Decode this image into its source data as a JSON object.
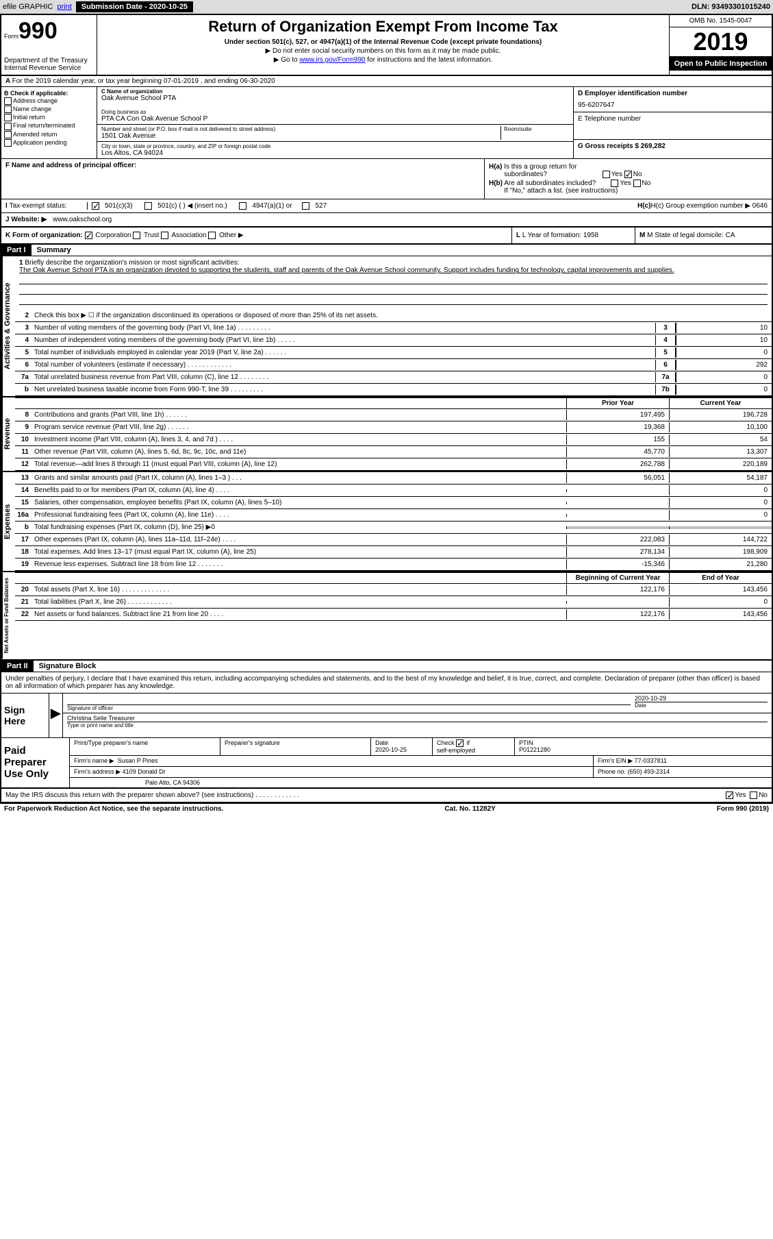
{
  "top_bar": {
    "efile": "efile GRAPHIC",
    "print": "print",
    "submission_label": "Submission Date - 2020-10-25",
    "dln": "DLN: 93493301015240"
  },
  "header": {
    "form_prefix": "Form",
    "form_number": "990",
    "title": "Return of Organization Exempt From Income Tax",
    "subtitle": "Under section 501(c), 527, or 4947(a)(1) of the Internal Revenue Code (except private foundations)",
    "note1": "▶ Do not enter social security numbers on this form as it may be made public.",
    "note2_prefix": "▶ Go to ",
    "note2_link": "www.irs.gov/Form990",
    "note2_suffix": " for instructions and the latest information.",
    "dept": "Department of the Treasury\nInternal Revenue Service",
    "omb": "OMB No. 1545-0047",
    "year": "2019",
    "open_pub": "Open to Public Inspection"
  },
  "row_a": {
    "text": "For the 2019 calendar year, or tax year beginning 07-01-2019   , and ending 06-30-2020"
  },
  "section_b": {
    "label": "B Check if applicable:",
    "items": [
      "Address change",
      "Name change",
      "Initial return",
      "Final return/terminated",
      "Amended return",
      "Application pending"
    ]
  },
  "section_c": {
    "name_label": "C Name of organization",
    "name": "Oak Avenue School PTA",
    "dba_label": "Doing business as",
    "dba": "PTA CA Con Oak Avenue School P",
    "addr_label": "Number and street (or P.O. box if mail is not delivered to street address)",
    "room_label": "Room/suite",
    "addr": "1501 Oak Avenue",
    "city_label": "City or town, state or province, country, and ZIP or foreign postal code",
    "city": "Los Altos, CA  94024"
  },
  "section_de": {
    "d_label": "D Employer identification number",
    "d_value": "95-6207647",
    "e_label": "E Telephone number",
    "g_label": "G Gross receipts $ 269,282"
  },
  "section_f": {
    "label": "F  Name and address of principal officer:"
  },
  "section_h": {
    "ha": "H(a)  Is this a group return for subordinates?",
    "hb": "H(b)  Are all subordinates included?",
    "hb_note": "If \"No,\" attach a list. (see instructions)",
    "hc": "H(c)  Group exemption number ▶   0646",
    "yes": "Yes",
    "no": "No"
  },
  "tax_status": {
    "label": "Tax-exempt status:",
    "opt1": "501(c)(3)",
    "opt2": "501(c) (   ) ◀ (insert no.)",
    "opt3": "4947(a)(1) or",
    "opt4": "527"
  },
  "website": {
    "label": "J  Website: ▶",
    "value": "www.oakschool.org"
  },
  "form_org": {
    "k_label": "K Form of organization:",
    "opts": [
      "Corporation",
      "Trust",
      "Association",
      "Other ▶"
    ],
    "l_label": "L Year of formation: 1958",
    "m_label": "M State of legal domicile: CA"
  },
  "part1": {
    "header": "Part I",
    "title": "Summary"
  },
  "mission": {
    "num": "1",
    "label": "Briefly describe the organization's mission or most significant activities:",
    "text": "The Oak Avenue School PTA is an organization devoted to supporting the students, staff and parents of the Oak Avenue School community. Support includes funding for technology, capital improvements and supplies."
  },
  "governance_lines": [
    {
      "num": "2",
      "desc": "Check this box ▶ ☐  if the organization discontinued its operations or disposed of more than 25% of its net assets."
    },
    {
      "num": "3",
      "desc": "Number of voting members of the governing body (Part VI, line 1a)  .    .    .    .    .    .    .    .    .",
      "box": "3",
      "val": "10"
    },
    {
      "num": "4",
      "desc": "Number of independent voting members of the governing body (Part VI, line 1b)  .    .    .    .    .",
      "box": "4",
      "val": "10"
    },
    {
      "num": "5",
      "desc": "Total number of individuals employed in calendar year 2019 (Part V, line 2a)  .    .    .    .    .    .",
      "box": "5",
      "val": "0"
    },
    {
      "num": "6",
      "desc": "Total number of volunteers (estimate if necessary)   .    .    .    .    .    .    .    .    .    .    .    .",
      "box": "6",
      "val": "292"
    },
    {
      "num": "7a",
      "desc": "Total unrelated business revenue from Part VIII, column (C), line 12  .    .    .    .    .    .    .    .",
      "box": "7a",
      "val": "0"
    },
    {
      "num": "b",
      "desc": "Net unrelated business taxable income from Form 990-T, line 39   .    .    .    .    .    .    .    .    .",
      "box": "7b",
      "val": "0"
    }
  ],
  "two_col_headers": {
    "prior": "Prior Year",
    "current": "Current Year"
  },
  "revenue_lines": [
    {
      "num": "8",
      "desc": "Contributions and grants (Part VIII, line 1h)   .    .    .    .    .    .",
      "prior": "197,495",
      "curr": "196,728"
    },
    {
      "num": "9",
      "desc": "Program service revenue (Part VIII, line 2g)   .    .    .    .    .    .",
      "prior": "19,368",
      "curr": "10,100"
    },
    {
      "num": "10",
      "desc": "Investment income (Part VIII, column (A), lines 3, 4, and 7d )   .    .    .    .",
      "prior": "155",
      "curr": "54"
    },
    {
      "num": "11",
      "desc": "Other revenue (Part VIII, column (A), lines 5, 6d, 8c, 9c, 10c, and 11e)",
      "prior": "45,770",
      "curr": "13,307"
    },
    {
      "num": "12",
      "desc": "Total revenue—add lines 8 through 11 (must equal Part VIII, column (A), line 12)",
      "prior": "262,788",
      "curr": "220,189"
    }
  ],
  "expense_lines": [
    {
      "num": "13",
      "desc": "Grants and similar amounts paid (Part IX, column (A), lines 1–3 )  .    .    .",
      "prior": "56,051",
      "curr": "54,187"
    },
    {
      "num": "14",
      "desc": "Benefits paid to or for members (Part IX, column (A), line 4)   .    .    .    .",
      "prior": "",
      "curr": "0"
    },
    {
      "num": "15",
      "desc": "Salaries, other compensation, employee benefits (Part IX, column (A), lines 5–10)",
      "prior": "",
      "curr": "0"
    },
    {
      "num": "16a",
      "desc": "Professional fundraising fees (Part IX, column (A), line 11e)   .    .    .    .",
      "prior": "",
      "curr": "0"
    },
    {
      "num": "b",
      "desc": "Total fundraising expenses (Part IX, column (D), line 25) ▶0",
      "shaded": true
    },
    {
      "num": "17",
      "desc": "Other expenses (Part IX, column (A), lines 11a–11d, 11f–24e)   .    .    .    .",
      "prior": "222,083",
      "curr": "144,722"
    },
    {
      "num": "18",
      "desc": "Total expenses. Add lines 13–17 (must equal Part IX, column (A), line 25)",
      "prior": "278,134",
      "curr": "198,909"
    },
    {
      "num": "19",
      "desc": "Revenue less expenses. Subtract line 18 from line 12  .    .    .    .    .    .    .",
      "prior": "-15,346",
      "curr": "21,280"
    }
  ],
  "net_headers": {
    "begin": "Beginning of Current Year",
    "end": "End of Year"
  },
  "net_lines": [
    {
      "num": "20",
      "desc": "Total assets (Part X, line 16)  .    .    .    .    .    .    .    .    .    .    .    .    .",
      "prior": "122,176",
      "curr": "143,456"
    },
    {
      "num": "21",
      "desc": "Total liabilities (Part X, line 26)  .    .    .    .    .    .    .    .    .    .    .    .",
      "prior": "",
      "curr": "0"
    },
    {
      "num": "22",
      "desc": "Net assets or fund balances. Subtract line 21 from line 20  .    .    .    .",
      "prior": "122,176",
      "curr": "143,456"
    }
  ],
  "side_labels": {
    "governance": "Activities & Governance",
    "revenue": "Revenue",
    "expenses": "Expenses",
    "net": "Net Assets or Fund Balances"
  },
  "part2": {
    "header": "Part II",
    "title": "Signature Block",
    "penalty": "Under penalties of perjury, I declare that I have examined this return, including accompanying schedules and statements, and to the best of my knowledge and belief, it is true, correct, and complete. Declaration of preparer (other than officer) is based on all information of which preparer has any knowledge."
  },
  "sign_here": {
    "label": "Sign Here",
    "sig_label": "Signature of officer",
    "date_label": "Date",
    "date": "2020-10-29",
    "name": "Christina Selle Treasurer",
    "name_label": "Type or print name and title"
  },
  "paid": {
    "label": "Paid Preparer Use Only",
    "print_label": "Print/Type preparer's name",
    "sig_label": "Preparer's signature",
    "date_label": "Date",
    "date": "2020-10-25",
    "check_label": "Check ☑ if self-employed",
    "ptin_label": "PTIN",
    "ptin": "P01221280",
    "firm_name_label": "Firm's name    ▶",
    "firm_name": "Susan P Pines",
    "firm_ein_label": "Firm's EIN ▶",
    "firm_ein": "77-0337811",
    "firm_addr_label": "Firm's address ▶",
    "firm_addr": "4109 Donald Dr",
    "firm_city": "Palo Alto, CA  94306",
    "phone_label": "Phone no.",
    "phone": "(650) 493-2314"
  },
  "discuss": {
    "text": "May the IRS discuss this return with the preparer shown above? (see instructions)   .    .    .    .    .    .    .    .    .    .    .    .",
    "yes": "Yes",
    "no": "No"
  },
  "footer": {
    "left": "For Paperwork Reduction Act Notice, see the separate instructions.",
    "mid": "Cat. No. 11282Y",
    "right": "Form 990 (2019)"
  }
}
